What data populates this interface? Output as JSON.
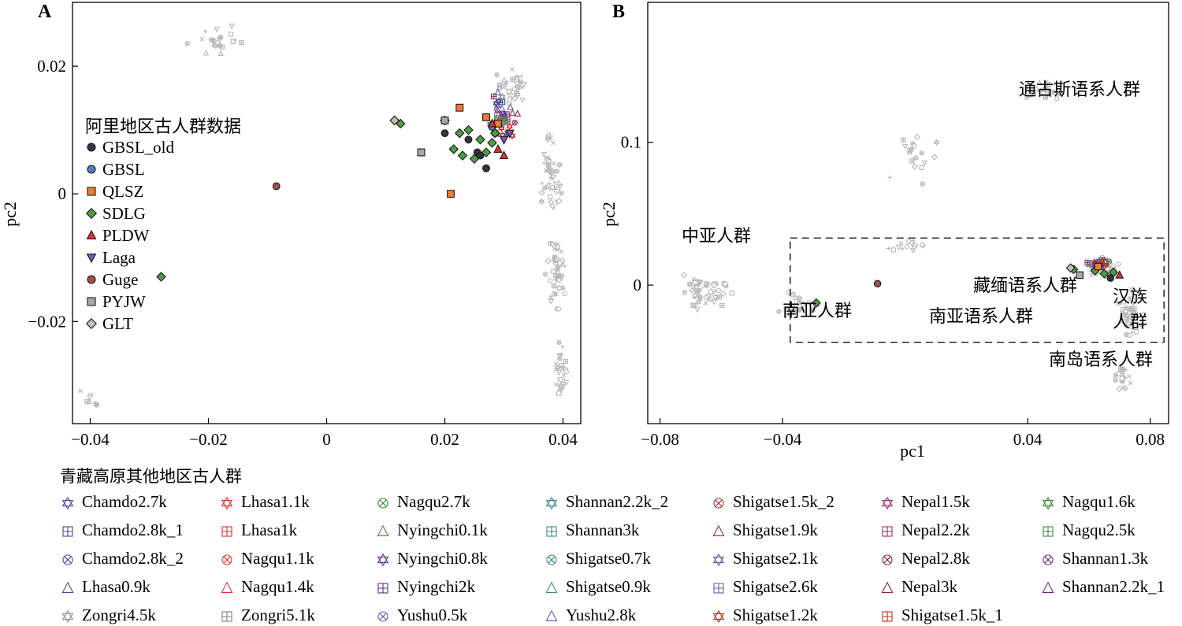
{
  "chart_data": [
    {
      "type": "scatter",
      "panel_label": "A",
      "xlabel": "",
      "ylabel": "pc2",
      "xlim": [
        -0.043,
        0.043
      ],
      "ylim": [
        -0.036,
        0.03
      ],
      "xticks": [
        -0.04,
        -0.02,
        0,
        0.02,
        0.04
      ],
      "xtick_labels": [
        "−0.04",
        "−0.02",
        "0",
        "0.02",
        "0.04"
      ],
      "yticks": [
        -0.02,
        0,
        0.02
      ],
      "ytick_labels": [
        "−0.02",
        "0",
        "0.02"
      ],
      "grid": false,
      "legend": {
        "title": "阿里地区古人群数据",
        "placement": "left",
        "entries": [
          {
            "name": "GBSL_old",
            "marker": "circle",
            "color": "#333345"
          },
          {
            "name": "GBSL",
            "marker": "circle",
            "color": "#4f7fbf"
          },
          {
            "name": "QLSZ",
            "marker": "square",
            "color": "#f07a30"
          },
          {
            "name": "SDLG",
            "marker": "diamond",
            "color": "#4aa040"
          },
          {
            "name": "PLDW",
            "marker": "triangle-up",
            "color": "#e03030"
          },
          {
            "name": "Laga",
            "marker": "triangle-down",
            "color": "#7a55b8"
          },
          {
            "name": "Guge",
            "marker": "circle",
            "color": "#a05048"
          },
          {
            "name": "PYJW",
            "marker": "square",
            "color": "#a8a8a8"
          },
          {
            "name": "GLT",
            "marker": "diamond",
            "color": "#c0c0c0"
          }
        ]
      },
      "series": [
        {
          "name": "GBSL_old",
          "points": [
            [
              0.02,
              0.0095
            ],
            [
              0.027,
              0.004
            ],
            [
              0.0255,
              0.0065
            ],
            [
              0.026,
              0.006
            ],
            [
              0.024,
              0.0085
            ]
          ]
        },
        {
          "name": "GBSL",
          "points": [
            [
              0.028,
              0.0105
            ],
            [
              0.0285,
              0.0095
            ]
          ]
        },
        {
          "name": "QLSZ",
          "points": [
            [
              0.0225,
              0.0135
            ],
            [
              0.027,
              0.012
            ],
            [
              0.029,
              0.011
            ],
            [
              0.021,
              -0.0
            ]
          ]
        },
        {
          "name": "SDLG",
          "points": [
            [
              0.0125,
              0.011
            ],
            [
              0.0115,
              0.0115
            ],
            [
              0.02,
              0.0115
            ],
            [
              0.0225,
              0.0095
            ],
            [
              0.024,
              0.01
            ],
            [
              0.023,
              0.006
            ],
            [
              0.0215,
              0.007
            ],
            [
              0.026,
              0.0085
            ],
            [
              0.025,
              0.0055
            ],
            [
              0.027,
              0.0065
            ],
            [
              0.028,
              0.008
            ],
            [
              0.0285,
              0.0095
            ],
            [
              -0.028,
              -0.013
            ]
          ]
        },
        {
          "name": "PLDW",
          "points": [
            [
              0.03,
              0.006
            ],
            [
              0.028,
              0.011
            ],
            [
              0.029,
              0.007
            ]
          ]
        },
        {
          "name": "Laga",
          "points": [
            [
              0.03,
              0.0085
            ],
            [
              0.031,
              0.0095
            ]
          ]
        },
        {
          "name": "Guge",
          "points": [
            [
              -0.0085,
              0.0012
            ]
          ]
        },
        {
          "name": "PYJW",
          "points": [
            [
              0.016,
              0.0065
            ],
            [
              0.02,
              0.0115
            ]
          ]
        },
        {
          "name": "GLT",
          "points": [
            [
              0.0115,
              0.0115
            ]
          ]
        }
      ]
    },
    {
      "type": "scatter",
      "panel_label": "B",
      "xlabel": "pc1",
      "ylabel": "pc2",
      "xlim": [
        -0.084,
        0.086
      ],
      "ylim": [
        -0.097,
        0.198
      ],
      "xticks": [
        -0.08,
        -0.04,
        0.04,
        0.08
      ],
      "xtick_labels": [
        "−0.08",
        "−0.04",
        "0.04",
        "0.08"
      ],
      "yticks": [
        0,
        0.1
      ],
      "ytick_labels": [
        "0",
        "0.1"
      ],
      "grid": false,
      "group_annotations": [
        "通古斯语系人群",
        "中亚人群",
        "藏缅语系人群",
        "南亚人群",
        "南亚语系人群",
        "汉族",
        "人群",
        "南岛语系人群"
      ],
      "dashed_box": {
        "x": [
          -0.0375,
          0.0845
        ],
        "y": [
          -0.04,
          0.033
        ]
      },
      "series": [
        {
          "name": "Guge",
          "points": [
            [
              -0.009,
              0.001
            ]
          ]
        },
        {
          "name": "SDLG",
          "points": [
            [
              -0.029,
              -0.0125
            ],
            [
              0.055,
              0.011
            ],
            [
              0.062,
              0.01
            ],
            [
              0.065,
              0.008
            ],
            [
              0.068,
              0.009
            ]
          ]
        },
        {
          "name": "PYJW",
          "points": [
            [
              0.057,
              0.007
            ]
          ]
        },
        {
          "name": "QLSZ",
          "points": [
            [
              0.063,
              0.013
            ]
          ]
        },
        {
          "name": "GLT",
          "points": [
            [
              0.054,
              0.012
            ]
          ]
        },
        {
          "name": "PLDW",
          "points": [
            [
              0.07,
              0.007
            ]
          ]
        },
        {
          "name": "GBSL_old",
          "points": [
            [
              0.067,
              0.005
            ]
          ]
        }
      ]
    }
  ],
  "bottom_legend": {
    "title": "青藏高原其他地区古人群",
    "entries": [
      {
        "name": "Chamdo2.7k",
        "marker": "star",
        "color": "#4848a0"
      },
      {
        "name": "Lhasa1.1k",
        "marker": "star",
        "color": "#e03030"
      },
      {
        "name": "Nagqu2.7k",
        "marker": "circle-x",
        "color": "#3a8a3a"
      },
      {
        "name": "Shannan2.2k_2",
        "marker": "star",
        "color": "#3a8a88"
      },
      {
        "name": "Shigatse1.5k_2",
        "marker": "circle-x",
        "color": "#a03030"
      },
      {
        "name": "Nepal1.5k",
        "marker": "star",
        "color": "#a0306a"
      },
      {
        "name": "Nagqu1.6k",
        "marker": "star",
        "color": "#3a8a3a"
      },
      {
        "name": "Chamdo2.8k_1",
        "marker": "square-plus",
        "color": "#4848a0"
      },
      {
        "name": "Lhasa1k",
        "marker": "square-plus",
        "color": "#e03030"
      },
      {
        "name": "Nyingchi0.1k",
        "marker": "triangle",
        "color": "#3a8a3a"
      },
      {
        "name": "Shannan3k",
        "marker": "square-plus",
        "color": "#3a8a88"
      },
      {
        "name": "Shigatse1.9k",
        "marker": "triangle",
        "color": "#a03030"
      },
      {
        "name": "Nepal2.2k",
        "marker": "square-plus",
        "color": "#a0306a"
      },
      {
        "name": "Nagqu2.5k",
        "marker": "square-plus",
        "color": "#3a8a3a"
      },
      {
        "name": "Chamdo2.8k_2",
        "marker": "circle-x",
        "color": "#4848a0"
      },
      {
        "name": "Nagqu1.1k",
        "marker": "circle-x",
        "color": "#e03030"
      },
      {
        "name": "Nyingchi0.8k",
        "marker": "star",
        "color": "#6a2a8a"
      },
      {
        "name": "Shigatse0.7k",
        "marker": "circle-x",
        "color": "#3a8a88"
      },
      {
        "name": "Shigatse2.1k",
        "marker": "star",
        "color": "#6a5ab0"
      },
      {
        "name": "Nepal2.8k",
        "marker": "circle-x",
        "color": "#8a2050"
      },
      {
        "name": "Shannan1.3k",
        "marker": "circle-x",
        "color": "#6a2a8a"
      },
      {
        "name": "Lhasa0.9k",
        "marker": "triangle",
        "color": "#4848a0"
      },
      {
        "name": "Nagqu1.4k",
        "marker": "triangle",
        "color": "#e03030"
      },
      {
        "name": "Nyingchi2k",
        "marker": "square-plus",
        "color": "#6a2a8a"
      },
      {
        "name": "Shigatse0.9k",
        "marker": "triangle",
        "color": "#3a8a88"
      },
      {
        "name": "Shigatse2.6k",
        "marker": "square-plus",
        "color": "#6a5ab0"
      },
      {
        "name": "Nepal3k",
        "marker": "triangle",
        "color": "#8a2050"
      },
      {
        "name": "Shannan2.2k_1",
        "marker": "triangle",
        "color": "#6a2a8a"
      },
      {
        "name": "Zongri4.5k",
        "marker": "star",
        "color": "#909090"
      },
      {
        "name": "Zongri5.1k",
        "marker": "square-plus",
        "color": "#808080"
      },
      {
        "name": "Yushu0.5k",
        "marker": "circle-x",
        "color": "#6a5ab0"
      },
      {
        "name": "Yushu2.8k",
        "marker": "triangle",
        "color": "#6a5ab0"
      },
      {
        "name": "Shigatse1.2k",
        "marker": "star",
        "color": "#c03020"
      },
      {
        "name": "Shigatse1.5k_1",
        "marker": "square-plus",
        "color": "#c03020"
      }
    ]
  }
}
